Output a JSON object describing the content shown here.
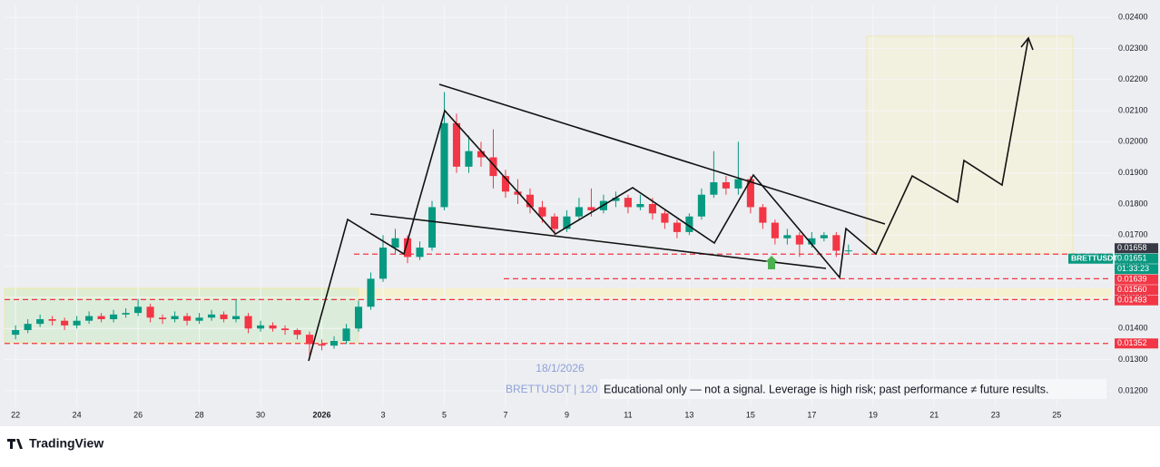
{
  "chart_data": {
    "type": "candlestick",
    "symbol_label": "BRETTUSDT",
    "up_color": "#089981",
    "down_color": "#f23645",
    "x": [
      0,
      0.4,
      0.8,
      1.2,
      1.6,
      2,
      2.4,
      2.8,
      3.2,
      3.6,
      4,
      4.4,
      4.8,
      5.2,
      5.6,
      6,
      6.4,
      6.8,
      7.2,
      7.6,
      8,
      8.4,
      8.8,
      9.2,
      9.6,
      10,
      10.4,
      10.8,
      11.2,
      11.6,
      12,
      12.4,
      12.8,
      13.2,
      13.6,
      14,
      14.4,
      14.8,
      15.2,
      15.6,
      16,
      16.4,
      16.8,
      17.2,
      17.6,
      18,
      18.4,
      18.8,
      19.2,
      19.6,
      20,
      20.4,
      20.8,
      21.2,
      21.6,
      22,
      22.4,
      22.8,
      23.2,
      23.6,
      24,
      24.4,
      24.8,
      25.2,
      25.6,
      26,
      26.4,
      26.8,
      27.2
    ],
    "open": [
      0.0138,
      0.01395,
      0.01415,
      0.0143,
      0.01425,
      0.0141,
      0.01425,
      0.0144,
      0.0143,
      0.01445,
      0.0145,
      0.0147,
      0.01435,
      0.0143,
      0.0144,
      0.01425,
      0.01435,
      0.01445,
      0.0143,
      0.0144,
      0.014,
      0.0141,
      0.014,
      0.01395,
      0.0138,
      0.0135,
      0.01345,
      0.0136,
      0.014,
      0.0147,
      0.0156,
      0.0166,
      0.0169,
      0.0163,
      0.0166,
      0.0179,
      0.0206,
      0.0192,
      0.0197,
      0.0195,
      0.0189,
      0.0184,
      0.0183,
      0.0179,
      0.0176,
      0.0172,
      0.0176,
      0.0179,
      0.0178,
      0.0181,
      0.0182,
      0.0179,
      0.018,
      0.0177,
      0.0174,
      0.0171,
      0.0176,
      0.0183,
      0.0187,
      0.0185,
      0.0188,
      0.0179,
      0.0174,
      0.0169,
      0.017,
      0.0167,
      0.0169,
      0.017,
      0.0165
    ],
    "high": [
      0.0141,
      0.0143,
      0.01445,
      0.0144,
      0.01435,
      0.0144,
      0.01455,
      0.0145,
      0.0146,
      0.01465,
      0.01495,
      0.0148,
      0.01445,
      0.01455,
      0.0145,
      0.0145,
      0.0146,
      0.01455,
      0.01495,
      0.0145,
      0.01425,
      0.0142,
      0.0141,
      0.014,
      0.0139,
      0.01365,
      0.01375,
      0.01415,
      0.0149,
      0.0158,
      0.017,
      0.0172,
      0.017,
      0.0168,
      0.0181,
      0.0216,
      0.0209,
      0.0202,
      0.02,
      0.0204,
      0.0191,
      0.0188,
      0.0185,
      0.0181,
      0.0177,
      0.0178,
      0.0182,
      0.0185,
      0.0183,
      0.0184,
      0.0183,
      0.0183,
      0.0182,
      0.0178,
      0.0175,
      0.0177,
      0.0185,
      0.0197,
      0.0189,
      0.02,
      0.0189,
      0.018,
      0.0175,
      0.0172,
      0.0171,
      0.0171,
      0.0171,
      0.0171,
      0.0167
    ],
    "low": [
      0.01365,
      0.01385,
      0.01405,
      0.0141,
      0.01395,
      0.014,
      0.01415,
      0.0142,
      0.0142,
      0.01435,
      0.0144,
      0.0142,
      0.01415,
      0.0142,
      0.0141,
      0.01415,
      0.01425,
      0.0142,
      0.0142,
      0.01385,
      0.0139,
      0.0139,
      0.0138,
      0.01365,
      0.013,
      0.0133,
      0.01335,
      0.0135,
      0.0139,
      0.0146,
      0.0155,
      0.0164,
      0.0161,
      0.0162,
      0.0165,
      0.0178,
      0.019,
      0.019,
      0.0192,
      0.0185,
      0.0182,
      0.018,
      0.0177,
      0.0174,
      0.017,
      0.0171,
      0.0175,
      0.0176,
      0.0177,
      0.0179,
      0.0177,
      0.0178,
      0.0175,
      0.0172,
      0.0169,
      0.017,
      0.0175,
      0.0182,
      0.0183,
      0.0183,
      0.0177,
      0.0172,
      0.0167,
      0.0167,
      0.0163,
      0.0166,
      0.0168,
      0.0163,
      0.0164
    ],
    "close": [
      0.01395,
      0.01415,
      0.0143,
      0.01425,
      0.0141,
      0.01425,
      0.0144,
      0.0143,
      0.01445,
      0.0145,
      0.0147,
      0.01435,
      0.0143,
      0.0144,
      0.01425,
      0.01435,
      0.01445,
      0.0143,
      0.0144,
      0.014,
      0.0141,
      0.014,
      0.01395,
      0.0138,
      0.0135,
      0.01345,
      0.0136,
      0.014,
      0.0147,
      0.0156,
      0.0166,
      0.0169,
      0.0163,
      0.0166,
      0.0179,
      0.0206,
      0.0192,
      0.0197,
      0.0195,
      0.0189,
      0.0184,
      0.0183,
      0.0179,
      0.0176,
      0.0172,
      0.0176,
      0.0179,
      0.0178,
      0.0181,
      0.0182,
      0.0179,
      0.018,
      0.0177,
      0.0174,
      0.0171,
      0.0176,
      0.0183,
      0.0187,
      0.0185,
      0.0188,
      0.0179,
      0.0174,
      0.0169,
      0.017,
      0.0167,
      0.0169,
      0.017,
      0.0165,
      0.01651
    ],
    "xlim": [
      -0.36,
      35.8
    ],
    "xticks": [
      {
        "value": 0,
        "label": "22"
      },
      {
        "value": 2,
        "label": "24"
      },
      {
        "value": 4,
        "label": "26"
      },
      {
        "value": 6,
        "label": "28"
      },
      {
        "value": 8,
        "label": "30"
      },
      {
        "value": 10,
        "label": "2026"
      },
      {
        "value": 12,
        "label": "3"
      },
      {
        "value": 14,
        "label": "5"
      },
      {
        "value": 16,
        "label": "7"
      },
      {
        "value": 18,
        "label": "9"
      },
      {
        "value": 20,
        "label": "11"
      },
      {
        "value": 22,
        "label": "13"
      },
      {
        "value": 24,
        "label": "15"
      },
      {
        "value": 26,
        "label": "17"
      },
      {
        "value": 28,
        "label": "19"
      },
      {
        "value": 30,
        "label": "21"
      },
      {
        "value": 32,
        "label": "23"
      },
      {
        "value": 34,
        "label": "25"
      }
    ],
    "ylim": [
      0.01092,
      0.02441
    ],
    "yticks": [
      {
        "value": 0.012,
        "label": "0.01200"
      },
      {
        "value": 0.013,
        "label": "0.01300"
      },
      {
        "value": 0.014,
        "label": "0.01400"
      },
      {
        "value": 0.015,
        "label": "0.01500"
      },
      {
        "value": 0.016,
        "label": "0.01600"
      },
      {
        "value": 0.017,
        "label": "0.01700"
      },
      {
        "value": 0.018,
        "label": "0.01800"
      },
      {
        "value": 0.019,
        "label": "0.01900"
      },
      {
        "value": 0.02,
        "label": "0.02000"
      },
      {
        "value": 0.021,
        "label": "0.02100"
      },
      {
        "value": 0.022,
        "label": "0.02200"
      },
      {
        "value": 0.023,
        "label": "0.02300"
      },
      {
        "value": 0.024,
        "label": "0.02400"
      }
    ],
    "mark_price": {
      "value": 0.01658,
      "label": "0.01658",
      "color": "#363a45"
    },
    "last_price": {
      "value": 0.01651,
      "label": "0.01651",
      "color": "#089981"
    },
    "countdown": "01:33:23",
    "price_levels": [
      {
        "value": 0.01639,
        "label": "0.01639",
        "color": "#f23645"
      },
      {
        "value": 0.0156,
        "label": "0.01560",
        "color": "#f23645"
      },
      {
        "value": 0.01493,
        "label": "0.01493",
        "color": "#f23645"
      },
      {
        "value": 0.01352,
        "label": "0.01352",
        "color": "#f23645"
      }
    ],
    "watermark": [
      "18/1/2026",
      "BRETTUSDT | 120"
    ],
    "annotation": "Educational only — not a signal. Leverage is high risk; past performance ≠ future results.",
    "brand": "TradingView"
  }
}
